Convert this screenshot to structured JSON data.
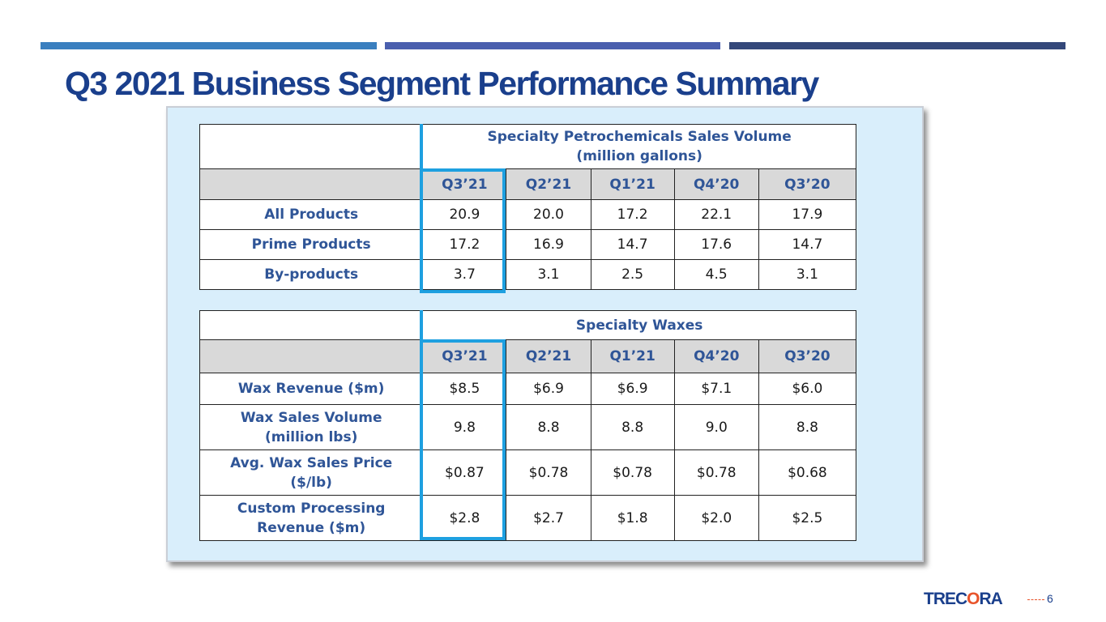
{
  "slide": {
    "title": "Q3 2021 Business Segment Performance Summary",
    "page_number": "6",
    "logo": {
      "part1": "TREC",
      "part2": "O",
      "part3": "RA"
    },
    "colors": {
      "title": "#1a3f8c",
      "accent_bar_1": "#3a7fbf",
      "accent_bar_2": "#4a5fae",
      "accent_bar_3": "#34487a",
      "highlight": "#1ea0e0",
      "logo_accent": "#e8542b"
    }
  },
  "petrochemicals": {
    "header_line1": "Specialty Petrochemicals Sales Volume",
    "header_line2": "(million gallons)",
    "quarters": [
      "Q3’21",
      "Q2’21",
      "Q1’21",
      "Q4’20",
      "Q3’20"
    ],
    "rows": [
      {
        "label": "All Products",
        "values": [
          "20.9",
          "20.0",
          "17.2",
          "22.1",
          "17.9"
        ]
      },
      {
        "label": "Prime Products",
        "values": [
          "17.2",
          "16.9",
          "14.7",
          "17.6",
          "14.7"
        ]
      },
      {
        "label": "By-products",
        "values": [
          "3.7",
          "3.1",
          "2.5",
          "4.5",
          "3.1"
        ]
      }
    ]
  },
  "waxes": {
    "header": "Specialty Waxes",
    "quarters": [
      "Q3’21",
      "Q2’21",
      "Q1’21",
      "Q4’20",
      "Q3’20"
    ],
    "rows": [
      {
        "label_line1": "Wax Revenue ($m)",
        "label_line2": "",
        "values": [
          "$8.5",
          "$6.9",
          "$6.9",
          "$7.1",
          "$6.0"
        ]
      },
      {
        "label_line1": "Wax Sales Volume",
        "label_line2": "(million lbs)",
        "values": [
          "9.8",
          "8.8",
          "8.8",
          "9.0",
          "8.8"
        ]
      },
      {
        "label_line1": "Avg. Wax Sales Price",
        "label_line2": "($/lb)",
        "values": [
          "$0.87",
          "$0.78",
          "$0.78",
          "$0.78",
          "$0.68"
        ]
      },
      {
        "label_line1": "Custom Processing",
        "label_line2": "Revenue ($m)",
        "values": [
          "$2.8",
          "$2.7",
          "$1.8",
          "$2.0",
          "$2.5"
        ]
      }
    ]
  }
}
